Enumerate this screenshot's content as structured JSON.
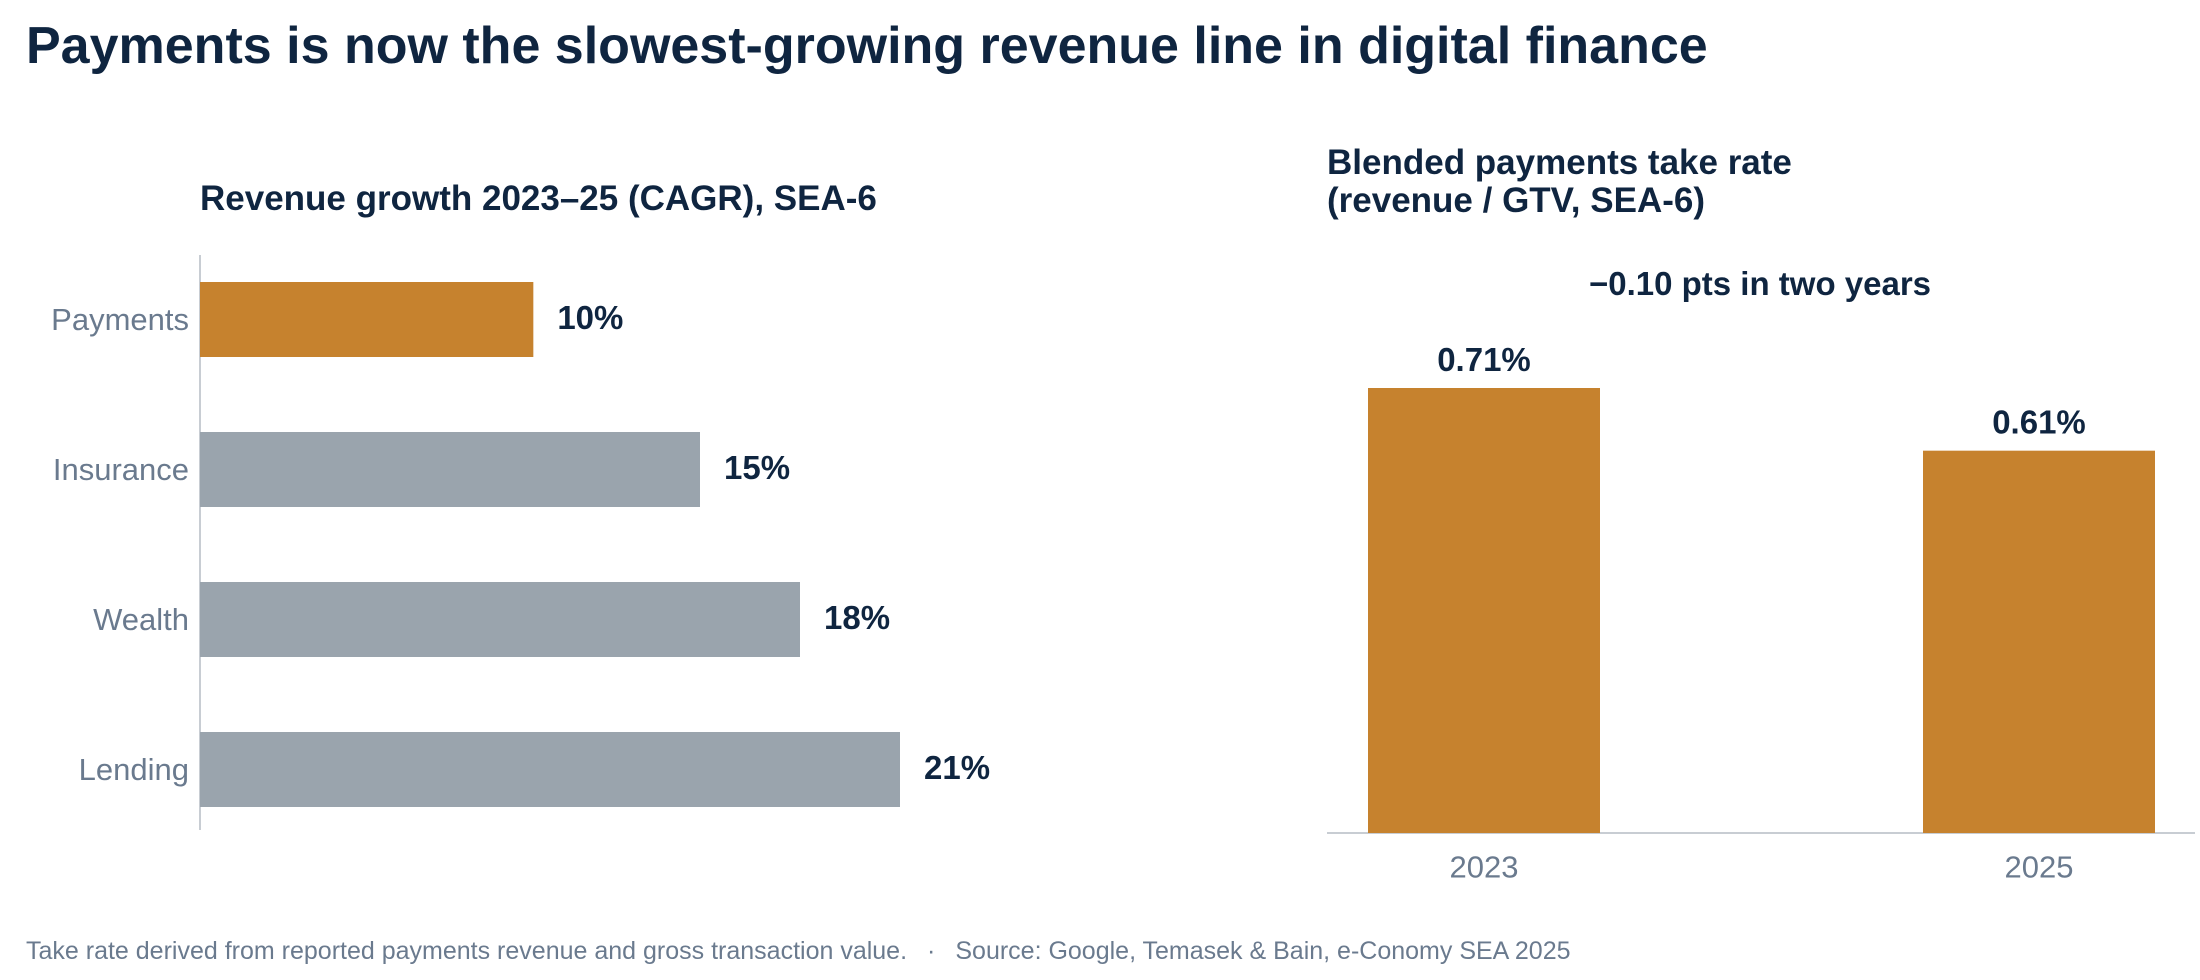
{
  "headline": "Payments is now the slowest-growing revenue line in digital finance",
  "colors": {
    "highlight": "#c6822e",
    "neutral": "#9aa4ad",
    "title": "#0f2540",
    "tick_label": "#6a7a8e",
    "axis": "#c8cdd3",
    "footer": "#6a7a8e"
  },
  "chart_data": [
    {
      "type": "bar",
      "orientation": "horizontal",
      "title": "Revenue growth 2023–25 (CAGR), SEA-6",
      "categories": [
        "Payments",
        "Insurance",
        "Wealth",
        "Lending"
      ],
      "values": [
        10,
        15,
        18,
        21
      ],
      "value_labels": [
        "10%",
        "15%",
        "18%",
        "21%"
      ],
      "highlight_category": "Payments",
      "xlim": [
        0,
        30
      ],
      "grid": false,
      "legend": "none"
    },
    {
      "type": "bar",
      "orientation": "vertical",
      "title_lines": [
        "Blended payments take rate",
        "(revenue / GTV, SEA-6)"
      ],
      "annotation": "−0.10 pts in two years",
      "categories": [
        "2023",
        "2025"
      ],
      "values": [
        0.71,
        0.61
      ],
      "value_labels": [
        "0.71%",
        "0.61%"
      ],
      "ylim": [
        0,
        0.8
      ],
      "grid": false,
      "legend": "none"
    }
  ],
  "footer": {
    "note": "Take rate derived from reported payments revenue and gross transaction value.",
    "separator": "·",
    "source": "Source: Google, Temasek & Bain, e-Conomy SEA 2025"
  }
}
